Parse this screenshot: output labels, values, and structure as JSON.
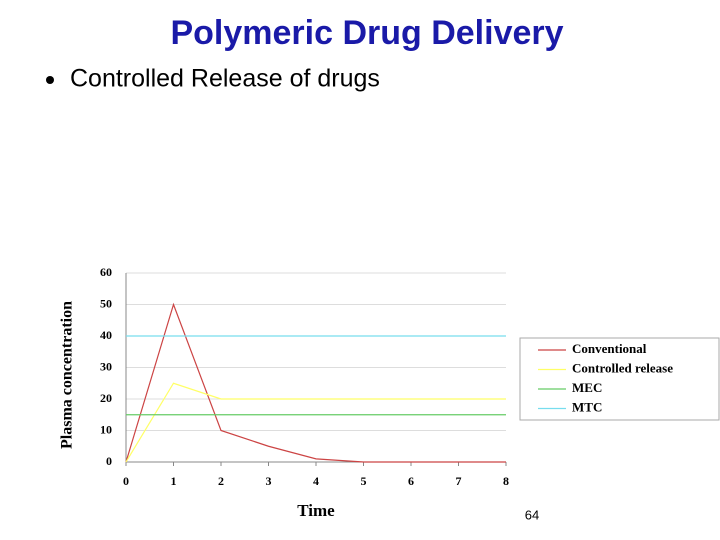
{
  "slide": {
    "title": "Polymeric Drug Delivery",
    "bullet": "Controlled Release of drugs",
    "page_number": "64"
  },
  "chart_data": {
    "type": "line",
    "x": [
      0,
      1,
      2,
      3,
      4,
      5,
      6,
      7,
      8
    ],
    "series": [
      {
        "name": "Conventional",
        "color": "#cc4444",
        "values": [
          0,
          50,
          10,
          5,
          1,
          0,
          0,
          0,
          0
        ]
      },
      {
        "name": "Controlled release",
        "color": "#ffff66",
        "values": [
          0,
          25,
          20,
          20,
          20,
          20,
          20,
          20,
          20
        ]
      },
      {
        "name": "MEC",
        "color": "#66cc66",
        "values": [
          15,
          15,
          15,
          15,
          15,
          15,
          15,
          15,
          15
        ]
      },
      {
        "name": "MTC",
        "color": "#77ddee",
        "values": [
          40,
          40,
          40,
          40,
          40,
          40,
          40,
          40,
          40
        ]
      }
    ],
    "xlabel": "Time",
    "ylabel": "Plasma concentration",
    "xlim": [
      0,
      8
    ],
    "xticks": [
      0,
      1,
      2,
      3,
      4,
      5,
      6,
      7,
      8
    ],
    "ylim": [
      0,
      60
    ],
    "yticks": [
      0,
      10,
      20,
      30,
      40,
      50,
      60
    ],
    "grid": true,
    "legend": "right"
  }
}
